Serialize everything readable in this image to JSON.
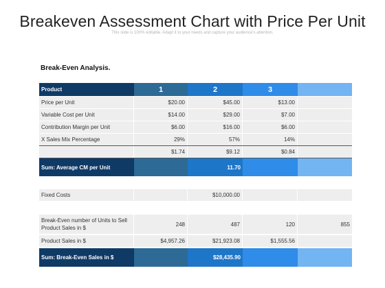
{
  "slide": {
    "title": "Breakeven Assessment Chart with Price Per Unit",
    "subtitle": "This slide is 100% editable. Adapt it to your needs and capture your audience's attention.",
    "section": "Break-Even Analysis."
  },
  "header": {
    "label": "Product",
    "col1": "1",
    "col2": "2",
    "col3": "3"
  },
  "rows": [
    {
      "label": "Price per Unit",
      "v1": "$20.00",
      "v2": "$45.00",
      "v3": "$13.00"
    },
    {
      "label": "Variable Cost per Unit",
      "v1": "$14.00",
      "v2": "$29.00",
      "v3": "$7.00"
    },
    {
      "label": "Contribution Margin per Unit",
      "v1": "$6.00",
      "v2": "$16.00",
      "v3": "$6.00"
    },
    {
      "label": "X Sales Mix Percentage",
      "v1": "29%",
      "v2": "57%",
      "v3": "14%"
    },
    {
      "label": "",
      "v1": "$1.74",
      "v2": "$9.12",
      "v3": "$0.84"
    }
  ],
  "sum_cm": {
    "label": "Sum: Average CM per Unit",
    "value": "11.70"
  },
  "fixed_costs": {
    "label": "Fixed Costs",
    "value": "$10,000.00"
  },
  "breakeven_units": {
    "label": "Break-Even number of Units to Sell Product Sales in  $",
    "v1": "248",
    "v2": "487",
    "v3": "120",
    "v4": "855"
  },
  "product_sales": {
    "label": "Product Sales in $",
    "v1": "$4,957.26",
    "v2": "$21,923.08",
    "v3": "$1,555.56"
  },
  "sum_sales": {
    "label": "Sum: Break-Even Sales in $",
    "value": "$28,435.90"
  }
}
